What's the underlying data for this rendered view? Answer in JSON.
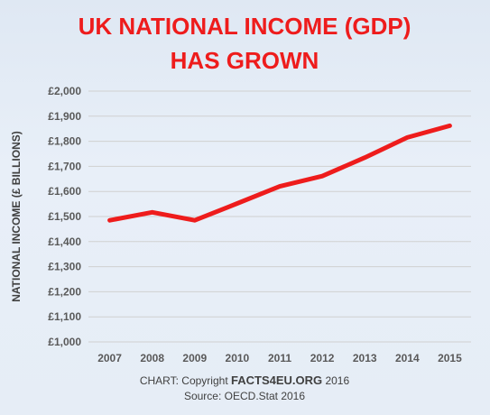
{
  "chart_data": {
    "type": "line",
    "title_lines": [
      "UK NATIONAL INCOME (GDP)",
      "HAS GROWN"
    ],
    "xlabel": "",
    "ylabel": "NATIONAL INCOME (£ BILLIONS)",
    "categories": [
      "2007",
      "2008",
      "2009",
      "2010",
      "2011",
      "2012",
      "2013",
      "2014",
      "2015"
    ],
    "series": [
      {
        "values": [
          1485,
          1517,
          1485,
          1552,
          1620,
          1661,
          1735,
          1815,
          1862
        ]
      }
    ],
    "ylim": [
      1000,
      2000
    ],
    "yticks": [
      1000,
      1100,
      1200,
      1300,
      1400,
      1500,
      1600,
      1700,
      1800,
      1900,
      2000
    ],
    "ytick_labels": [
      "£1,000",
      "£1,100",
      "£1,200",
      "£1,300",
      "£1,400",
      "£1,500",
      "£1,600",
      "£1,700",
      "£1,800",
      "£1,900",
      "£2,000"
    ],
    "grid": true,
    "line_color": "#ee1c1c",
    "grid_color": "#d0d0d0"
  },
  "footer": {
    "line1_prefix": "CHART: Copyright ",
    "line1_brand": "FACTS4EU.ORG",
    "line1_suffix": " 2016",
    "line2": "Source: OECD.Stat 2016"
  }
}
